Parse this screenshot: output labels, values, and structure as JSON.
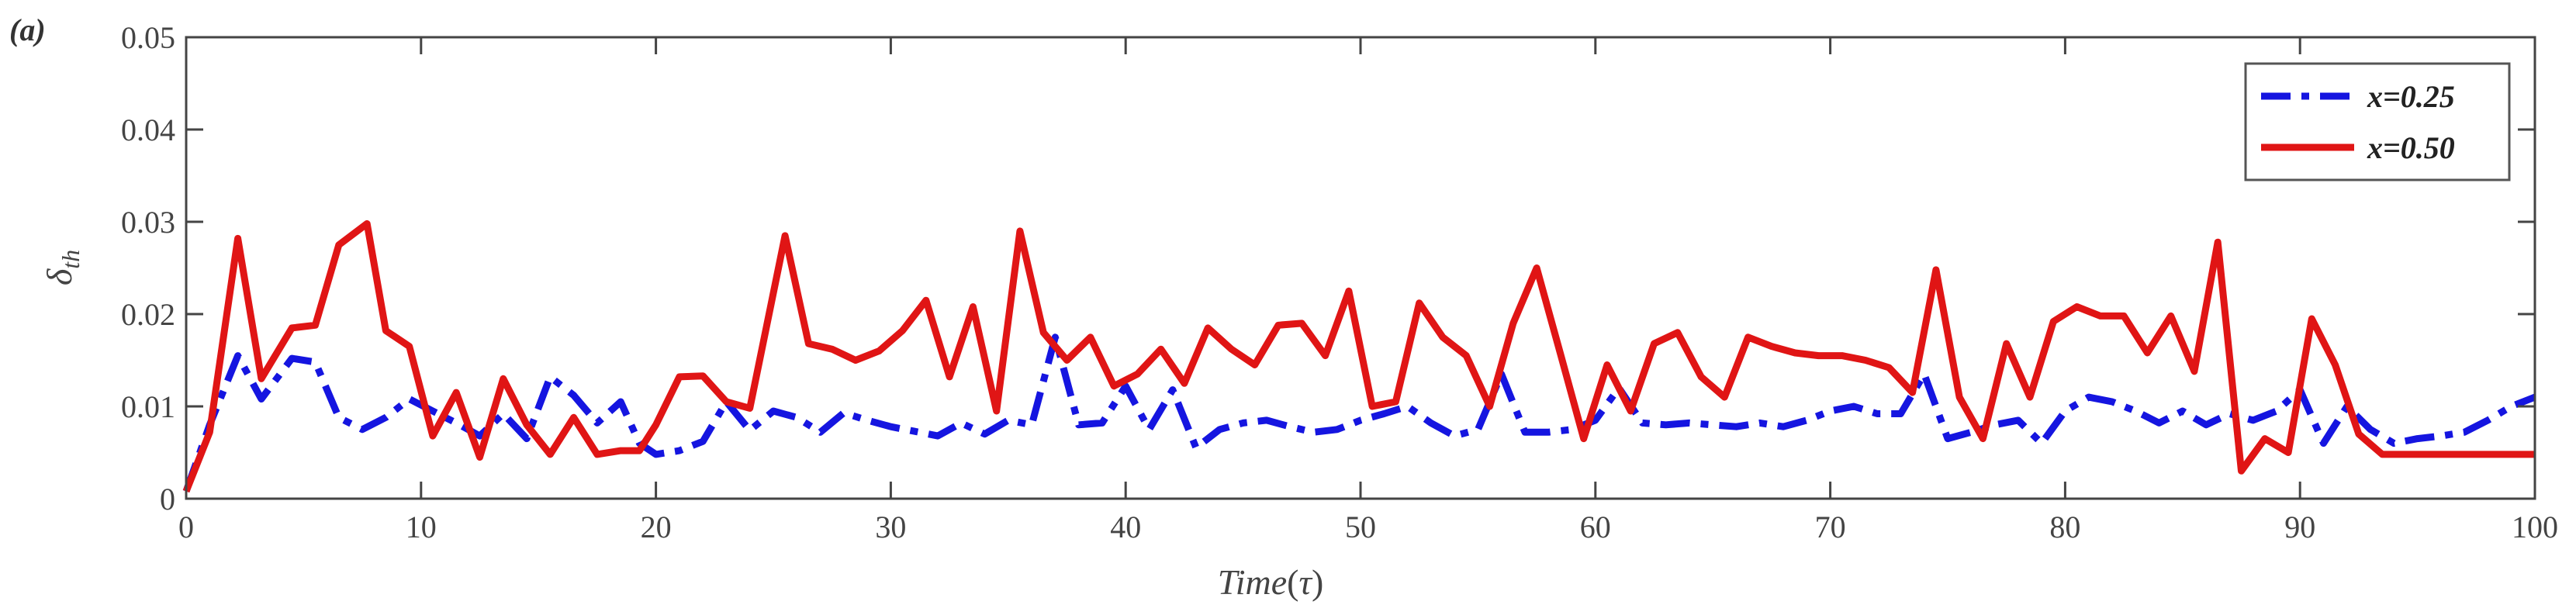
{
  "panel_label": "(a)",
  "chart_data": {
    "type": "line",
    "title": "",
    "xlabel": "Time(τ)",
    "xlabel_main": "Time",
    "xlabel_paren_open": "(",
    "xlabel_symbol": "τ",
    "xlabel_paren_close": ")",
    "ylabel": "δth",
    "ylabel_main": "δ",
    "ylabel_sub": "th",
    "xlim": [
      0,
      100
    ],
    "ylim": [
      0,
      0.05
    ],
    "xticks": [
      0,
      10,
      20,
      30,
      40,
      50,
      60,
      70,
      80,
      90,
      100
    ],
    "xtick_labels": [
      "0",
      "10",
      "20",
      "30",
      "40",
      "50",
      "60",
      "70",
      "80",
      "90",
      "100"
    ],
    "yticks": [
      0,
      0.01,
      0.02,
      0.03,
      0.04,
      0.05
    ],
    "ytick_labels": [
      "0",
      "0.01",
      "0.02",
      "0.03",
      "0.04",
      "0.05"
    ],
    "grid": false,
    "legend_position": "top-right",
    "series": [
      {
        "name": "x=0.25",
        "color": "#1515e0",
        "style": "dashdot",
        "x": [
          0,
          1,
          2.2,
          3.2,
          4.5,
          5.5,
          6.5,
          7.5,
          8.5,
          9.5,
          10.5,
          11.5,
          12.5,
          13.5,
          14.5,
          15.5,
          16.5,
          17.5,
          18.5,
          19.3,
          20,
          21,
          22,
          23,
          24,
          25,
          26,
          27,
          28,
          29,
          30,
          31,
          32,
          33,
          34,
          35,
          36,
          37,
          38,
          39,
          40,
          41,
          42,
          43,
          44,
          45,
          46,
          47,
          48,
          49,
          50,
          51,
          52,
          53,
          54,
          55,
          56,
          57,
          58,
          59,
          60,
          61,
          62,
          63,
          64,
          65,
          66,
          67,
          68,
          69,
          70,
          71,
          72,
          73,
          74,
          75,
          76,
          77,
          78,
          79,
          80,
          81,
          82,
          83,
          84,
          85,
          86,
          87,
          88,
          89,
          90,
          91,
          92,
          93,
          94,
          95,
          96,
          97,
          98,
          99,
          100
        ],
        "values": [
          0.0008,
          0.008,
          0.0155,
          0.0108,
          0.0152,
          0.0148,
          0.0088,
          0.0075,
          0.0088,
          0.0108,
          0.0095,
          0.0082,
          0.0068,
          0.0092,
          0.0065,
          0.0132,
          0.0112,
          0.0082,
          0.0105,
          0.006,
          0.0048,
          0.0052,
          0.0062,
          0.0105,
          0.0074,
          0.0095,
          0.0088,
          0.0072,
          0.0093,
          0.0085,
          0.0078,
          0.0073,
          0.0068,
          0.0082,
          0.007,
          0.0085,
          0.008,
          0.0175,
          0.008,
          0.0082,
          0.0122,
          0.0075,
          0.0118,
          0.0055,
          0.0075,
          0.0082,
          0.0085,
          0.0078,
          0.0072,
          0.0075,
          0.0085,
          0.0092,
          0.01,
          0.0082,
          0.0068,
          0.0075,
          0.0135,
          0.0072,
          0.0072,
          0.0075,
          0.0085,
          0.012,
          0.0082,
          0.008,
          0.0082,
          0.008,
          0.0078,
          0.0082,
          0.0078,
          0.0085,
          0.0095,
          0.01,
          0.0092,
          0.0092,
          0.0135,
          0.0065,
          0.0072,
          0.008,
          0.0085,
          0.006,
          0.0095,
          0.011,
          0.0105,
          0.0095,
          0.0082,
          0.0095,
          0.008,
          0.0092,
          0.0085,
          0.0095,
          0.0118,
          0.006,
          0.01,
          0.0075,
          0.006,
          0.0065,
          0.0068,
          0.0072,
          0.0085,
          0.01,
          0.011
        ]
      },
      {
        "name": "x=0.50",
        "color": "#e01515",
        "style": "solid",
        "x": [
          0,
          1,
          2.2,
          3.2,
          4.5,
          5.5,
          6.5,
          7.7,
          8.5,
          9.5,
          10.5,
          11.5,
          12.5,
          13.5,
          14.5,
          15.5,
          16.5,
          17.5,
          18.5,
          19.3,
          20,
          21,
          22,
          23,
          24,
          25.5,
          26.5,
          27.5,
          28.5,
          29.5,
          30.5,
          31.5,
          32.5,
          33.5,
          34.5,
          35.5,
          36.5,
          37.5,
          38.5,
          39.5,
          40.5,
          41.5,
          42.5,
          43.5,
          44.5,
          45.5,
          46.5,
          47.5,
          48.5,
          49.5,
          50.5,
          51.5,
          52.5,
          53.5,
          54.5,
          55.5,
          56.5,
          57.5,
          58.5,
          59.5,
          60.5,
          61.5,
          62.5,
          63.5,
          64.5,
          65.5,
          66.5,
          67.5,
          68.5,
          69.5,
          70.5,
          71.5,
          72.5,
          73.5,
          74.5,
          75.5,
          76.5,
          77.5,
          78.5,
          79.5,
          80.5,
          81.5,
          82.5,
          83.5,
          84.5,
          85.5,
          86.5,
          87.5,
          88.5,
          89.5,
          90.5,
          91.5,
          92.5,
          93.5,
          94.5,
          95.5,
          96.5,
          97.5,
          98.5,
          99.5,
          100
        ],
        "values": [
          0.0008,
          0.0072,
          0.0282,
          0.013,
          0.0185,
          0.0188,
          0.0275,
          0.0298,
          0.0182,
          0.0165,
          0.0068,
          0.0115,
          0.0045,
          0.013,
          0.008,
          0.0048,
          0.0088,
          0.0048,
          0.0052,
          0.0052,
          0.008,
          0.0132,
          0.0133,
          0.0105,
          0.0098,
          0.0285,
          0.0168,
          0.0162,
          0.015,
          0.016,
          0.0182,
          0.0215,
          0.0132,
          0.0208,
          0.0095,
          0.029,
          0.018,
          0.015,
          0.0175,
          0.0122,
          0.0135,
          0.0162,
          0.0125,
          0.0185,
          0.0162,
          0.0145,
          0.0188,
          0.019,
          0.0155,
          0.0225,
          0.01,
          0.0105,
          0.0212,
          0.0175,
          0.0155,
          0.01,
          0.019,
          0.025,
          0.0158,
          0.0065,
          0.0145,
          0.0095,
          0.0168,
          0.018,
          0.0132,
          0.011,
          0.0175,
          0.0165,
          0.0158,
          0.0155,
          0.0155,
          0.015,
          0.0142,
          0.0115,
          0.0248,
          0.011,
          0.0065,
          0.0168,
          0.011,
          0.0192,
          0.0208,
          0.0198,
          0.0198,
          0.0158,
          0.0198,
          0.0138,
          0.0278,
          0.003,
          0.0065,
          0.005,
          0.0195,
          0.0145,
          0.007,
          0.0048,
          0.0048,
          0.0048,
          0.0048,
          0.0048,
          0.0048,
          0.0048,
          0.0048
        ]
      }
    ]
  }
}
